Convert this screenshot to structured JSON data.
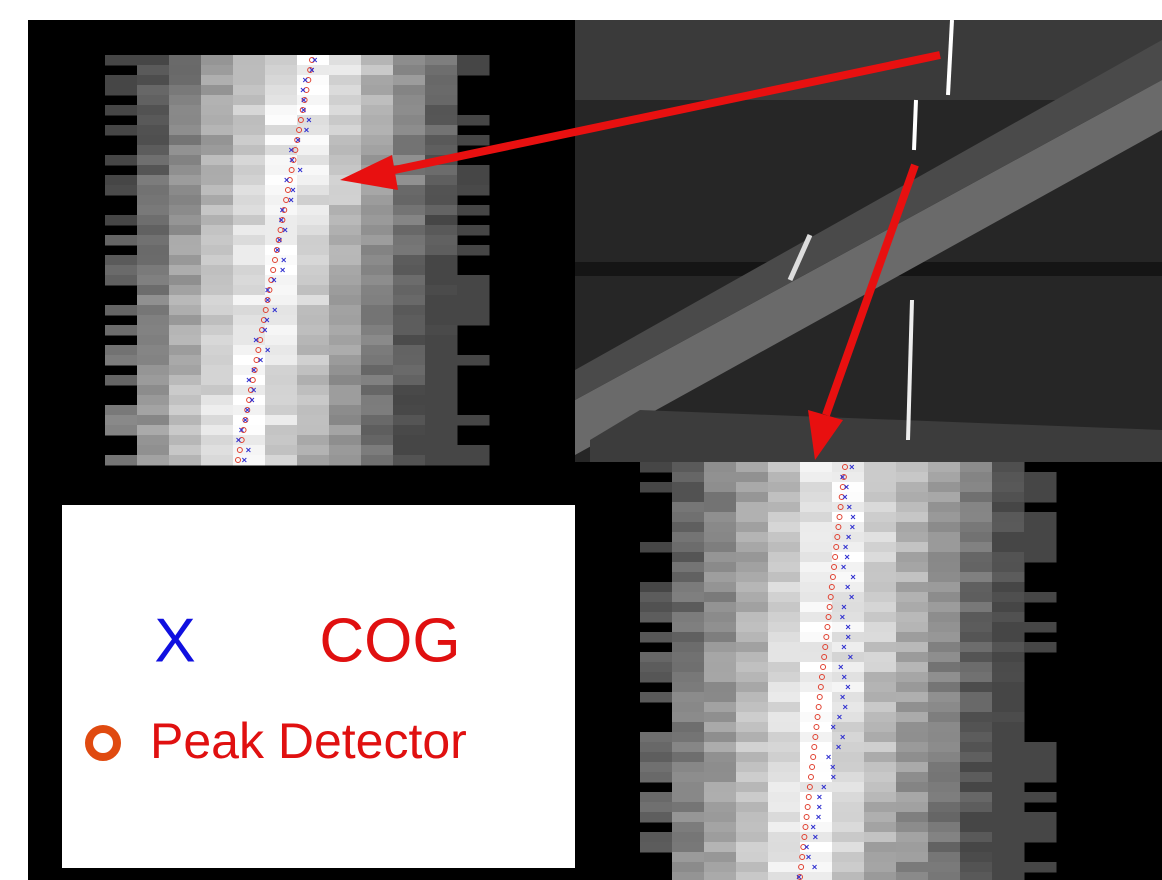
{
  "legend": {
    "items": [
      {
        "symbol": "X",
        "label": "COG"
      },
      {
        "label": "Peak Detector"
      }
    ]
  }
}
